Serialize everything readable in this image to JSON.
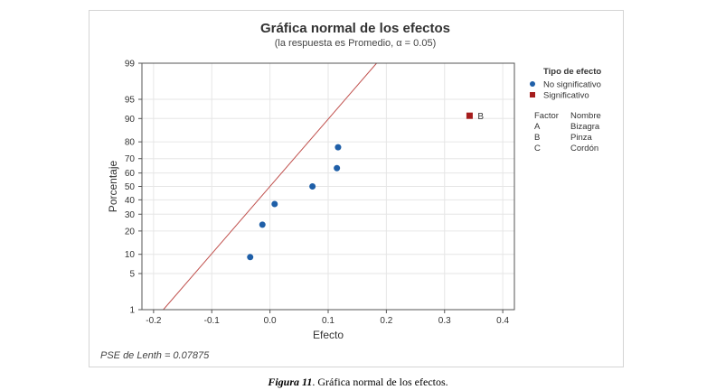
{
  "chart_data": {
    "type": "scatter",
    "title": "Gráfica normal de los efectos",
    "subtitle": "(la respuesta es Promedio, α = 0.05)",
    "xlabel": "Efecto",
    "ylabel": "Porcentaje",
    "xlim": [
      -0.22,
      0.42
    ],
    "x_ticks": [
      -0.2,
      -0.1,
      0.0,
      0.1,
      0.2,
      0.3,
      0.4
    ],
    "x_tick_labels": [
      "-0.2",
      "-0.1",
      "0.0",
      "0.1",
      "0.2",
      "0.3",
      "0.4"
    ],
    "y_scale": "normal-probability",
    "ylim": [
      1,
      99
    ],
    "y_ticks": [
      1,
      5,
      10,
      20,
      30,
      40,
      50,
      60,
      70,
      80,
      90,
      95,
      99
    ],
    "y_tick_labels": [
      "1",
      "5",
      "10",
      "20",
      "30",
      "40",
      "50",
      "60",
      "70",
      "80",
      "90",
      "95",
      "99"
    ],
    "grid": true,
    "reference_line": {
      "mean": 0,
      "sd": 0.07875,
      "color": "#c0504d"
    },
    "series": [
      {
        "name": "No significativo",
        "color": "#1f5fa8",
        "marker": "circle",
        "points": [
          {
            "x": -0.034,
            "y": 9.1
          },
          {
            "x": -0.013,
            "y": 23.5
          },
          {
            "x": 0.008,
            "y": 37.0
          },
          {
            "x": 0.073,
            "y": 50.0
          },
          {
            "x": 0.115,
            "y": 63.5
          },
          {
            "x": 0.117,
            "y": 77.0
          }
        ]
      },
      {
        "name": "Significativo",
        "color": "#a51c1c",
        "marker": "square",
        "points": [
          {
            "x": 0.343,
            "y": 90.9,
            "label": "B"
          }
        ]
      }
    ],
    "legend": {
      "title": "Tipo de efecto",
      "placement": "right",
      "factor_table": {
        "headers": [
          "Factor",
          "Nombre"
        ],
        "rows": [
          [
            "A",
            "Bizagra"
          ],
          [
            "B",
            "Pinza"
          ],
          [
            "C",
            "Cordón"
          ]
        ]
      }
    },
    "annotation": "PSE de Lenth = 0.07875"
  },
  "caption": {
    "figure_label": "Figura 11",
    "text": ". Gráfica normal de los efectos."
  }
}
